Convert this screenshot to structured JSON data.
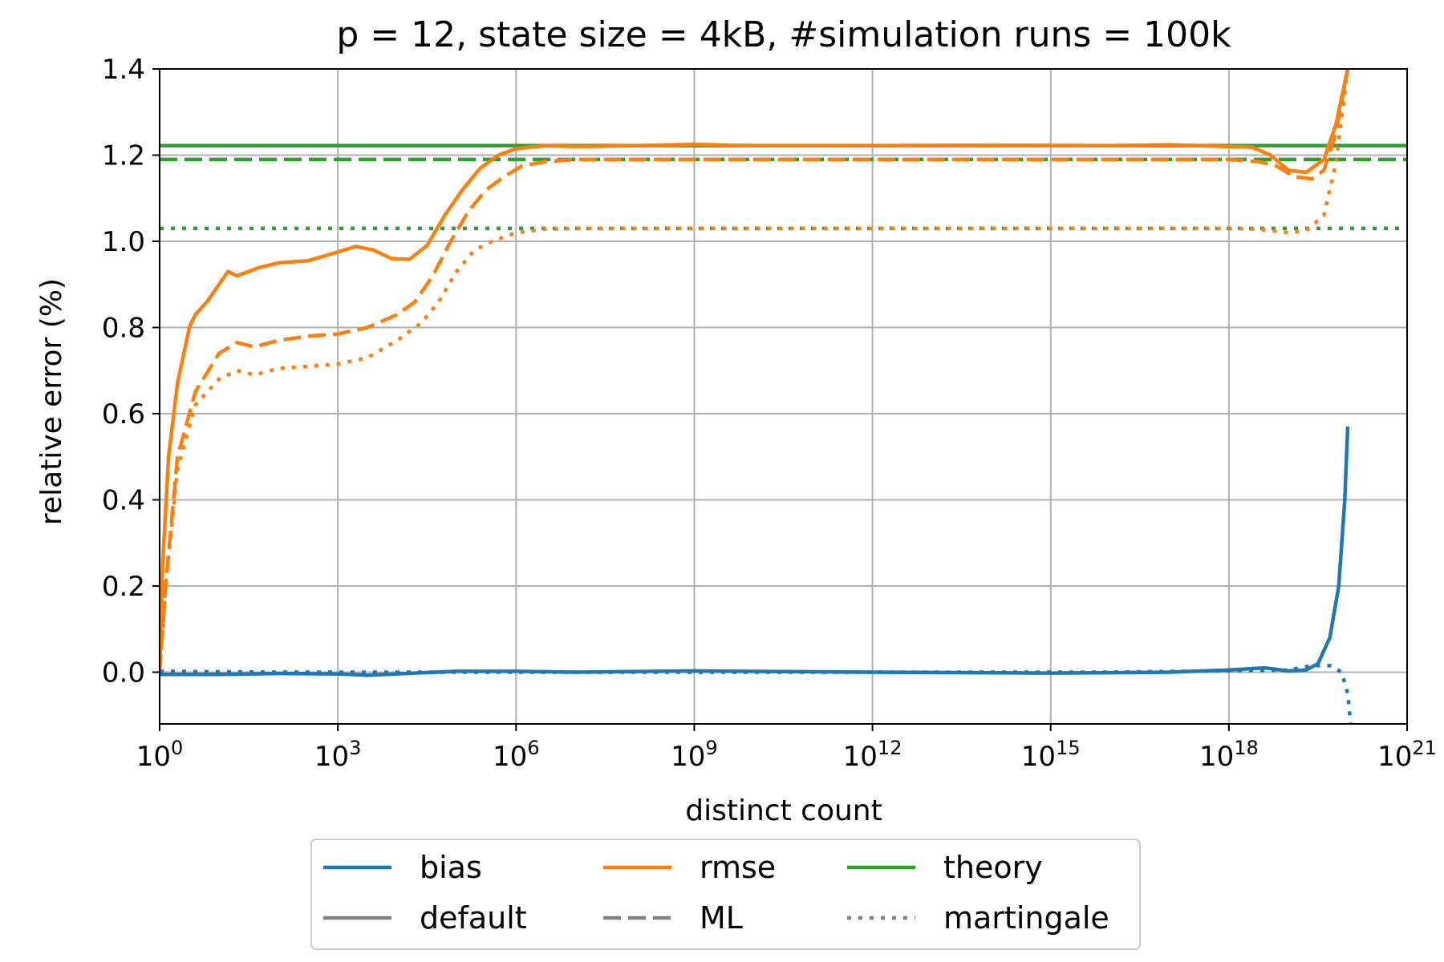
{
  "chart_data": {
    "type": "line",
    "title": "p = 12, state size = 4kB, #simulation runs = 100k",
    "xlabel": "distinct count",
    "ylabel": "relative error (%)",
    "xscale": "log",
    "xlim_exponent": [
      0,
      21
    ],
    "ylim": [
      -0.12,
      1.4
    ],
    "xtick_exponents": [
      "0",
      "3",
      "6",
      "9",
      "12",
      "15",
      "18",
      "21"
    ],
    "xtick_base": "10",
    "yticks": [
      "0.0",
      "0.2",
      "0.4",
      "0.6",
      "0.8",
      "1.0",
      "1.2",
      "1.4"
    ],
    "grid": true,
    "colors": {
      "bias": "#1f77b4",
      "rmse": "#ff7f0e",
      "theory": "#2ca02c",
      "style_key": "#808080"
    },
    "theory_lines": [
      {
        "estimator": "default",
        "style": "solid",
        "value": 1.222
      },
      {
        "estimator": "ML",
        "style": "dashed",
        "value": 1.19
      },
      {
        "estimator": "martingale",
        "style": "dotted",
        "value": 1.03
      }
    ],
    "series": [
      {
        "metric": "rmse",
        "estimator": "default",
        "style": "solid",
        "points": [
          [
            0,
            0.0
          ],
          [
            0.05,
            0.25
          ],
          [
            0.15,
            0.5
          ],
          [
            0.3,
            0.67
          ],
          [
            0.5,
            0.8
          ],
          [
            0.6,
            0.83
          ],
          [
            0.8,
            0.86
          ],
          [
            1.0,
            0.9
          ],
          [
            1.15,
            0.93
          ],
          [
            1.3,
            0.92
          ],
          [
            1.5,
            0.93
          ],
          [
            1.7,
            0.94
          ],
          [
            2.0,
            0.95
          ],
          [
            2.5,
            0.955
          ],
          [
            3.0,
            0.975
          ],
          [
            3.3,
            0.988
          ],
          [
            3.6,
            0.98
          ],
          [
            3.9,
            0.96
          ],
          [
            4.2,
            0.958
          ],
          [
            4.5,
            0.99
          ],
          [
            4.8,
            1.06
          ],
          [
            5.1,
            1.12
          ],
          [
            5.4,
            1.17
          ],
          [
            5.7,
            1.2
          ],
          [
            6.0,
            1.215
          ],
          [
            6.5,
            1.222
          ],
          [
            7,
            1.22
          ],
          [
            8,
            1.222
          ],
          [
            9,
            1.225
          ],
          [
            10,
            1.222
          ],
          [
            12,
            1.222
          ],
          [
            14,
            1.223
          ],
          [
            16,
            1.222
          ],
          [
            17,
            1.224
          ],
          [
            18,
            1.22
          ],
          [
            18.4,
            1.218
          ],
          [
            18.7,
            1.2
          ],
          [
            19.0,
            1.165
          ],
          [
            19.3,
            1.16
          ],
          [
            19.6,
            1.19
          ],
          [
            19.8,
            1.27
          ],
          [
            20.0,
            1.4
          ]
        ]
      },
      {
        "metric": "rmse",
        "estimator": "ML",
        "style": "dashed",
        "points": [
          [
            0,
            0.0
          ],
          [
            0.1,
            0.2
          ],
          [
            0.3,
            0.5
          ],
          [
            0.6,
            0.65
          ],
          [
            1.0,
            0.74
          ],
          [
            1.3,
            0.765
          ],
          [
            1.6,
            0.755
          ],
          [
            2.0,
            0.77
          ],
          [
            2.5,
            0.78
          ],
          [
            3.0,
            0.785
          ],
          [
            3.5,
            0.8
          ],
          [
            4.0,
            0.83
          ],
          [
            4.3,
            0.86
          ],
          [
            4.6,
            0.92
          ],
          [
            4.9,
            1.0
          ],
          [
            5.2,
            1.07
          ],
          [
            5.5,
            1.12
          ],
          [
            5.8,
            1.15
          ],
          [
            6.1,
            1.175
          ],
          [
            6.5,
            1.185
          ],
          [
            7,
            1.19
          ],
          [
            8,
            1.19
          ],
          [
            10,
            1.19
          ],
          [
            12,
            1.19
          ],
          [
            14,
            1.19
          ],
          [
            16,
            1.19
          ],
          [
            18,
            1.19
          ],
          [
            18.5,
            1.185
          ],
          [
            18.8,
            1.175
          ],
          [
            19.1,
            1.15
          ],
          [
            19.4,
            1.145
          ],
          [
            19.6,
            1.165
          ],
          [
            19.8,
            1.25
          ],
          [
            20.0,
            1.4
          ]
        ]
      },
      {
        "metric": "rmse",
        "estimator": "martingale",
        "style": "dotted",
        "points": [
          [
            0,
            0.0
          ],
          [
            0.1,
            0.2
          ],
          [
            0.3,
            0.47
          ],
          [
            0.6,
            0.62
          ],
          [
            1.0,
            0.68
          ],
          [
            1.3,
            0.7
          ],
          [
            1.6,
            0.69
          ],
          [
            2.0,
            0.705
          ],
          [
            2.5,
            0.71
          ],
          [
            3.0,
            0.715
          ],
          [
            3.5,
            0.73
          ],
          [
            4.0,
            0.77
          ],
          [
            4.4,
            0.81
          ],
          [
            4.7,
            0.86
          ],
          [
            5.0,
            0.93
          ],
          [
            5.3,
            0.98
          ],
          [
            5.6,
            1.0
          ],
          [
            6.0,
            1.02
          ],
          [
            6.5,
            1.028
          ],
          [
            7,
            1.03
          ],
          [
            8,
            1.03
          ],
          [
            10,
            1.03
          ],
          [
            12,
            1.03
          ],
          [
            14,
            1.03
          ],
          [
            16,
            1.03
          ],
          [
            18,
            1.03
          ],
          [
            18.5,
            1.028
          ],
          [
            19.0,
            1.02
          ],
          [
            19.3,
            1.025
          ],
          [
            19.6,
            1.06
          ],
          [
            19.8,
            1.18
          ],
          [
            20.0,
            1.4
          ]
        ]
      },
      {
        "metric": "bias",
        "estimator": "default",
        "style": "solid",
        "points": [
          [
            0,
            -0.005
          ],
          [
            1,
            -0.005
          ],
          [
            2,
            -0.003
          ],
          [
            3,
            -0.004
          ],
          [
            3.5,
            -0.007
          ],
          [
            4,
            -0.004
          ],
          [
            5,
            0.002
          ],
          [
            6,
            0.002
          ],
          [
            7,
            0.0
          ],
          [
            9,
            0.003
          ],
          [
            12,
            0.0
          ],
          [
            15,
            -0.002
          ],
          [
            17,
            0.0
          ],
          [
            18,
            0.005
          ],
          [
            18.6,
            0.01
          ],
          [
            19.0,
            0.003
          ],
          [
            19.3,
            0.005
          ],
          [
            19.5,
            0.02
          ],
          [
            19.7,
            0.08
          ],
          [
            19.85,
            0.2
          ],
          [
            19.95,
            0.4
          ],
          [
            20.0,
            0.57
          ]
        ]
      },
      {
        "metric": "bias",
        "estimator": "martingale",
        "style": "dotted",
        "points": [
          [
            0,
            0.002
          ],
          [
            2,
            0.0
          ],
          [
            4,
            0.0
          ],
          [
            8,
            0.0
          ],
          [
            12,
            0.0
          ],
          [
            16,
            0.0
          ],
          [
            19.0,
            0.005
          ],
          [
            19.4,
            0.015
          ],
          [
            19.7,
            0.015
          ],
          [
            19.9,
            0.0
          ],
          [
            20.0,
            -0.05
          ],
          [
            20.05,
            -0.12
          ]
        ]
      }
    ],
    "legend": {
      "placement": "bottom",
      "rows": [
        [
          {
            "label": "bias",
            "color": "#1f77b4",
            "style": "solid"
          },
          {
            "label": "rmse",
            "color": "#ff7f0e",
            "style": "solid"
          },
          {
            "label": "theory",
            "color": "#2ca02c",
            "style": "solid"
          }
        ],
        [
          {
            "label": "default",
            "color": "#808080",
            "style": "solid"
          },
          {
            "label": "ML",
            "color": "#808080",
            "style": "dashed"
          },
          {
            "label": "martingale",
            "color": "#808080",
            "style": "dotted"
          }
        ]
      ]
    }
  }
}
